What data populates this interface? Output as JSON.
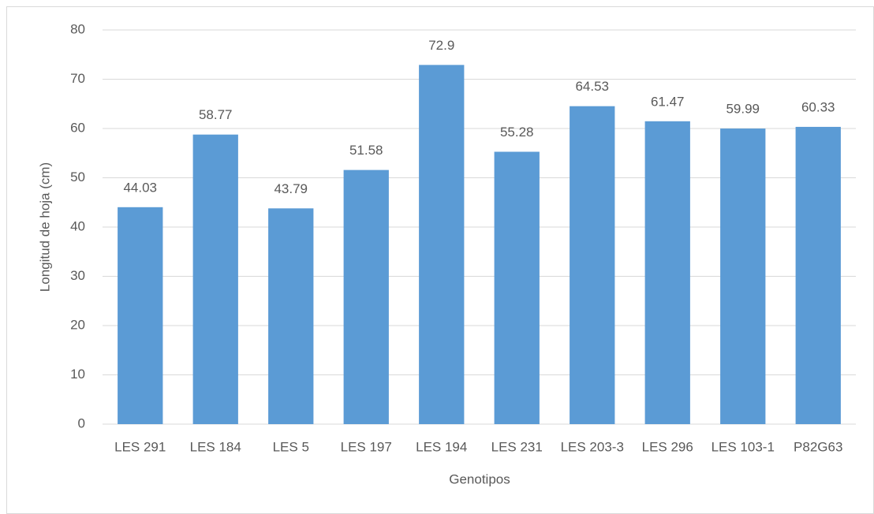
{
  "chart_data": {
    "type": "bar",
    "x_label": "Genotipos",
    "y_label": "Longitud de hoja (cm)",
    "categories": [
      "LES 291",
      "LES 184",
      "LES 5",
      "LES 197",
      "LES 194",
      "LES 231",
      "LES 203-3",
      "LES 296",
      "LES 103-1",
      "P82G63"
    ],
    "values": [
      44.03,
      58.77,
      43.79,
      51.58,
      72.9,
      55.28,
      64.53,
      61.47,
      59.99,
      60.33
    ],
    "color": "#5b9bd5",
    "ylim": [
      0,
      80
    ],
    "yticks": [
      0,
      10,
      20,
      30,
      40,
      50,
      60,
      70,
      80
    ],
    "grid": true
  }
}
